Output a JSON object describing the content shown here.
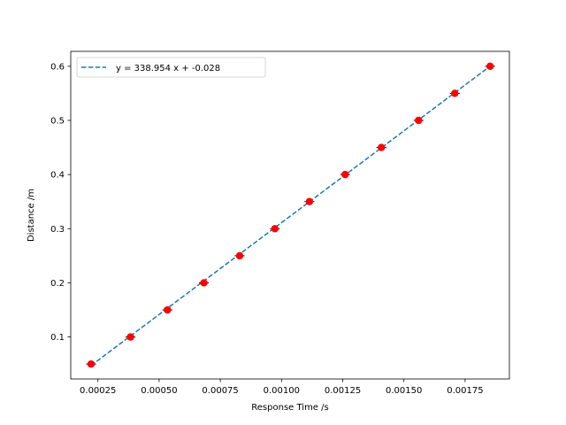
{
  "chart_data": {
    "type": "scatter",
    "title": "",
    "xlabel": "Response Time /s",
    "ylabel": "Distance /m",
    "xlim": [
      0.000139,
      0.001931
    ],
    "ylim": [
      0.0225,
      0.6275
    ],
    "x_ticks": [
      0.00025,
      0.0005,
      0.00075,
      0.001,
      0.00125,
      0.0015,
      0.00175
    ],
    "x_tick_labels": [
      "0.00025",
      "0.00050",
      "0.00075",
      "0.00100",
      "0.00125",
      "0.00150",
      "0.00175"
    ],
    "y_ticks": [
      0.1,
      0.2,
      0.3,
      0.4,
      0.5,
      0.6
    ],
    "y_tick_labels": [
      "0.1",
      "0.2",
      "0.3",
      "0.4",
      "0.5",
      "0.6"
    ],
    "grid": false,
    "legend_position": "upper-left",
    "series": [
      {
        "type": "scatter",
        "color": "#ff0000",
        "x": [
          0.000222,
          0.000383,
          0.000534,
          0.000683,
          0.000829,
          0.000973,
          0.001114,
          0.00126,
          0.001408,
          0.00156,
          0.001708,
          0.001852
        ],
        "y": [
          0.05,
          0.1,
          0.15,
          0.2,
          0.25,
          0.3,
          0.35,
          0.4,
          0.45,
          0.5,
          0.55,
          0.6
        ],
        "xerr": 2e-05
      },
      {
        "type": "line",
        "name": "y = 338.954 x + -0.028",
        "style": "dashed",
        "color": "#1f77b4",
        "x": [
          0.000222,
          0.001852
        ],
        "y": [
          0.0473,
          0.6
        ]
      }
    ]
  }
}
